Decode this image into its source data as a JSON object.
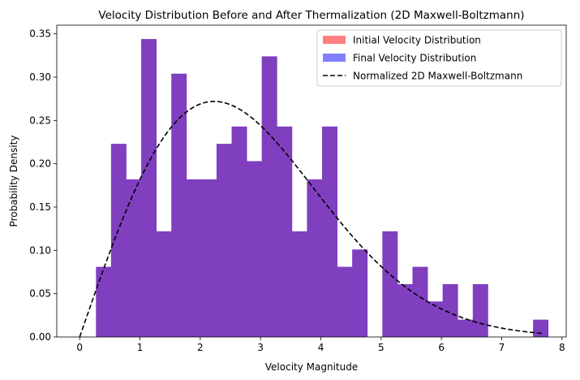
{
  "chart_data": {
    "type": "bar",
    "title": "Velocity Distribution Before and After Thermalization (2D Maxwell-Boltzmann)",
    "xlabel": "Velocity Magnitude",
    "ylabel": "Probability Density",
    "xlim": [
      -0.38,
      8.07
    ],
    "ylim": [
      0,
      0.36
    ],
    "xticks": [
      "0",
      "1",
      "2",
      "3",
      "4",
      "5",
      "6",
      "7",
      "8"
    ],
    "yticks": [
      "0.00",
      "0.05",
      "0.10",
      "0.15",
      "0.20",
      "0.25",
      "0.30",
      "0.35"
    ],
    "legend_position": "top-right",
    "bin_edges": [
      0.27,
      0.52,
      0.77,
      1.02,
      1.27,
      1.52,
      1.77,
      2.02,
      2.27,
      2.52,
      2.77,
      3.02,
      3.27,
      3.52,
      3.77,
      4.02,
      4.27,
      4.52,
      4.77,
      5.02,
      5.27,
      5.52,
      5.77,
      6.02,
      6.27,
      6.52,
      6.77,
      7.02,
      7.27,
      7.52,
      7.77
    ],
    "series": [
      {
        "name": "Initial Velocity Distribution",
        "color": "#ff8080",
        "values": [
          0.081,
          0.223,
          0.182,
          0.344,
          0.122,
          0.304,
          0.182,
          0.182,
          0.223,
          0.243,
          0.203,
          0.324,
          0.243,
          0.122,
          0.182,
          0.243,
          0.081,
          0.101,
          0,
          0.122,
          0.061,
          0.081,
          0.041,
          0.061,
          0.02,
          0.061,
          0,
          0,
          0,
          0.02
        ]
      },
      {
        "name": "Final Velocity Distribution",
        "color": "#8080ff",
        "values": [
          0.081,
          0.223,
          0.182,
          0.344,
          0.122,
          0.304,
          0.182,
          0.182,
          0.223,
          0.243,
          0.203,
          0.324,
          0.243,
          0.122,
          0.182,
          0.243,
          0.081,
          0.101,
          0,
          0.122,
          0.061,
          0.081,
          0.041,
          0.061,
          0.02,
          0.061,
          0,
          0,
          0,
          0.02
        ]
      }
    ],
    "overlap_color": "#7f3fbf",
    "curve": {
      "name": "Normalized 2D Maxwell-Boltzmann",
      "color": "#000000",
      "style": "dashed",
      "x_start": 0,
      "x_end": 7.7,
      "peak_x": 2.23
    }
  }
}
